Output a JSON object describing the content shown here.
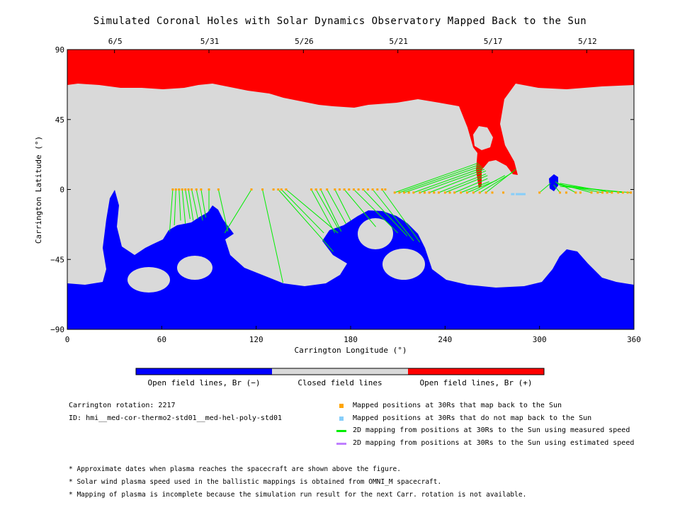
{
  "title": "Simulated Coronal Holes with Solar Dynamics Observatory Mapped Back to the Sun",
  "chart_data": {
    "type": "scatter",
    "xlabel": "Carrington Longitude (°)",
    "ylabel": "Carrington Latitude (°)",
    "xlim": [
      0,
      360
    ],
    "ylim": [
      -90,
      90
    ],
    "x_ticks": [
      0,
      60,
      120,
      180,
      240,
      300,
      360
    ],
    "y_ticks": [
      -90,
      -45,
      0,
      45,
      90
    ],
    "top_axis": {
      "labels": [
        "6/5",
        "5/31",
        "5/26",
        "5/21",
        "5/17",
        "5/12"
      ],
      "longitudes": [
        30,
        90,
        150,
        210,
        270,
        330
      ]
    },
    "region_colors": {
      "open_negative": "#0000ff",
      "closed": "#d9d9d9",
      "open_positive": "#ff0000",
      "mapped": "#ffa500",
      "not_mapped": "#87cefa",
      "measured_line": "#00ee00",
      "estimated_line": "#bf7fff"
    },
    "mapped_points": [
      [
        67,
        0
      ],
      [
        69,
        0
      ],
      [
        71,
        0
      ],
      [
        73,
        0
      ],
      [
        75,
        0
      ],
      [
        77,
        0
      ],
      [
        79,
        0
      ],
      [
        82,
        0
      ],
      [
        85,
        0
      ],
      [
        90,
        0
      ],
      [
        96,
        0
      ],
      [
        117,
        0
      ],
      [
        124,
        0
      ],
      [
        131,
        0
      ],
      [
        134,
        0
      ],
      [
        136,
        0
      ],
      [
        139,
        0
      ],
      [
        155,
        0
      ],
      [
        158,
        0
      ],
      [
        161,
        0
      ],
      [
        165,
        0
      ],
      [
        170,
        0
      ],
      [
        173,
        0
      ],
      [
        176,
        0
      ],
      [
        179,
        0
      ],
      [
        182,
        0
      ],
      [
        185,
        0
      ],
      [
        188,
        0
      ],
      [
        191,
        0
      ],
      [
        194,
        0
      ],
      [
        197,
        0
      ],
      [
        200,
        0
      ],
      [
        202,
        0
      ],
      [
        208,
        -2
      ],
      [
        211,
        -2
      ],
      [
        214,
        -2
      ],
      [
        217,
        -2
      ],
      [
        220,
        -2
      ],
      [
        224,
        -2
      ],
      [
        227,
        -2
      ],
      [
        230,
        -2
      ],
      [
        233,
        -2
      ],
      [
        236,
        -2
      ],
      [
        240,
        -2
      ],
      [
        243,
        -2
      ],
      [
        246,
        -2
      ],
      [
        250,
        -2
      ],
      [
        254,
        -2
      ],
      [
        258,
        -2
      ],
      [
        262,
        -2
      ],
      [
        266,
        -2
      ],
      [
        270,
        -2
      ],
      [
        277,
        -2
      ],
      [
        300,
        -2
      ],
      [
        313,
        -2
      ],
      [
        317,
        -2
      ],
      [
        323,
        -2
      ],
      [
        326,
        -2
      ],
      [
        333,
        -2
      ],
      [
        337,
        -2
      ],
      [
        340,
        -2
      ],
      [
        343,
        -2
      ],
      [
        346,
        -2
      ],
      [
        350,
        -2
      ],
      [
        353,
        -2
      ],
      [
        356,
        -2
      ],
      [
        358,
        -2
      ]
    ],
    "unmapped_points": [
      [
        283,
        -3
      ],
      [
        286,
        -3
      ],
      [
        288,
        -3
      ],
      [
        290,
        -3
      ]
    ],
    "measured_lines": [
      [
        [
          67,
          0
        ],
        [
          65,
          -27
        ]
      ],
      [
        [
          69,
          0
        ],
        [
          68,
          -23
        ]
      ],
      [
        [
          71,
          0
        ],
        [
          72,
          -20
        ]
      ],
      [
        [
          73,
          0
        ],
        [
          75,
          -22
        ]
      ],
      [
        [
          75,
          0
        ],
        [
          78,
          -19
        ]
      ],
      [
        [
          77,
          0
        ],
        [
          80,
          -20
        ]
      ],
      [
        [
          79,
          0
        ],
        [
          83,
          -19
        ]
      ],
      [
        [
          82,
          0
        ],
        [
          86,
          -20
        ]
      ],
      [
        [
          85,
          0
        ],
        [
          88,
          -18
        ]
      ],
      [
        [
          90,
          0
        ],
        [
          90,
          -14
        ]
      ],
      [
        [
          96,
          0
        ],
        [
          102,
          -27
        ]
      ],
      [
        [
          117,
          0
        ],
        [
          100,
          -28
        ]
      ],
      [
        [
          124,
          0
        ],
        [
          137,
          -60
        ]
      ],
      [
        [
          134,
          0
        ],
        [
          169,
          -40
        ]
      ],
      [
        [
          136,
          0
        ],
        [
          163,
          -28
        ]
      ],
      [
        [
          139,
          0
        ],
        [
          172,
          -28
        ]
      ],
      [
        [
          155,
          0
        ],
        [
          170,
          -28
        ]
      ],
      [
        [
          158,
          0
        ],
        [
          172,
          -25
        ]
      ],
      [
        [
          161,
          0
        ],
        [
          174,
          -27
        ]
      ],
      [
        [
          165,
          0
        ],
        [
          177,
          -22
        ]
      ],
      [
        [
          170,
          0
        ],
        [
          180,
          -20
        ]
      ],
      [
        [
          176,
          0
        ],
        [
          196,
          -24
        ]
      ],
      [
        [
          182,
          0
        ],
        [
          210,
          -28
        ]
      ],
      [
        [
          188,
          0
        ],
        [
          216,
          -30
        ]
      ],
      [
        [
          194,
          0
        ],
        [
          220,
          -33
        ]
      ],
      [
        [
          200,
          0
        ],
        [
          224,
          -34
        ]
      ],
      [
        [
          208,
          -2
        ],
        [
          261,
          17
        ]
      ],
      [
        [
          211,
          -2
        ],
        [
          262,
          16
        ]
      ],
      [
        [
          214,
          -2
        ],
        [
          263,
          15
        ]
      ],
      [
        [
          220,
          -2
        ],
        [
          264,
          14
        ]
      ],
      [
        [
          224,
          -2
        ],
        [
          265,
          13
        ]
      ],
      [
        [
          230,
          -2
        ],
        [
          266,
          12
        ]
      ],
      [
        [
          236,
          -2
        ],
        [
          266,
          10
        ]
      ],
      [
        [
          240,
          -2
        ],
        [
          267,
          9
        ]
      ],
      [
        [
          246,
          -2
        ],
        [
          267,
          7
        ]
      ],
      [
        [
          250,
          -2
        ],
        [
          268,
          5
        ]
      ],
      [
        [
          254,
          -2
        ],
        [
          273,
          6
        ]
      ],
      [
        [
          258,
          -2
        ],
        [
          278,
          9
        ]
      ],
      [
        [
          262,
          -2
        ],
        [
          283,
          11
        ]
      ],
      [
        [
          266,
          -2
        ],
        [
          285,
          13
        ]
      ],
      [
        [
          300,
          -2
        ],
        [
          307,
          4
        ]
      ],
      [
        [
          313,
          -2
        ],
        [
          309,
          3
        ]
      ],
      [
        [
          323,
          -2
        ],
        [
          310,
          5
        ]
      ],
      [
        [
          333,
          -2
        ],
        [
          311,
          4
        ]
      ],
      [
        [
          340,
          -2
        ],
        [
          312,
          3
        ]
      ],
      [
        [
          346,
          -2
        ],
        [
          313,
          4
        ]
      ],
      [
        [
          353,
          -2
        ],
        [
          312,
          3
        ]
      ],
      [
        [
          358,
          -2
        ],
        [
          313,
          2
        ]
      ]
    ]
  },
  "colorbar": {
    "labels": [
      "Open field lines, Br (−)",
      "Closed field lines",
      "Open field lines, Br (+)"
    ]
  },
  "info": {
    "rotation": "Carrington rotation: 2217",
    "id": "ID: hmi__med-cor-thermo2-std01__med-hel-poly-std01"
  },
  "legend": [
    {
      "type": "square",
      "color": "#ffa500",
      "label": "Mapped positions at 30Rs that map back to the Sun"
    },
    {
      "type": "square",
      "color": "#87cefa",
      "label": "Mapped positions at 30Rs that do not map back to the Sun"
    },
    {
      "type": "line",
      "color": "#00ee00",
      "label": "2D mapping from positions at 30Rs to the Sun using measured speed"
    },
    {
      "type": "line",
      "color": "#bf7fff",
      "label": "2D mapping from positions at 30Rs to the Sun using estimated speed"
    }
  ],
  "notes": [
    "* Approximate dates when plasma reaches the spacecraft are shown above the figure.",
    "* Solar wind plasma speed used in the ballistic mappings is obtained from OMNI_M spacecraft.",
    "* Mapping of plasma is incomplete because the simulation run result for the next Carr. rotation is not available."
  ]
}
